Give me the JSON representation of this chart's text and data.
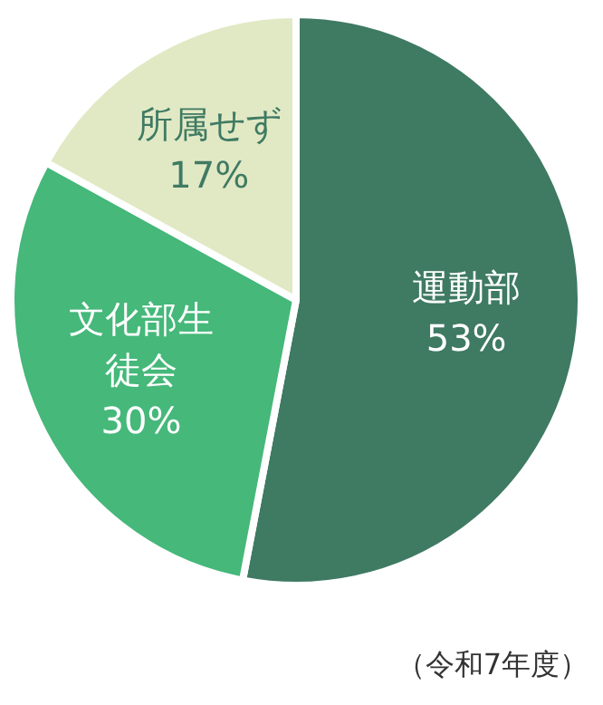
{
  "chart_data": {
    "type": "pie",
    "categories": [
      "運動部",
      "文化部生徒会",
      "所属せず"
    ],
    "values": [
      53,
      30,
      17
    ],
    "value_labels": [
      "53%",
      "30%",
      "17%"
    ],
    "colors": [
      "#3f7a63",
      "#45b87a",
      "#e1e9c4"
    ],
    "legend": false,
    "annotations": [
      "（令和7年度）"
    ]
  }
}
